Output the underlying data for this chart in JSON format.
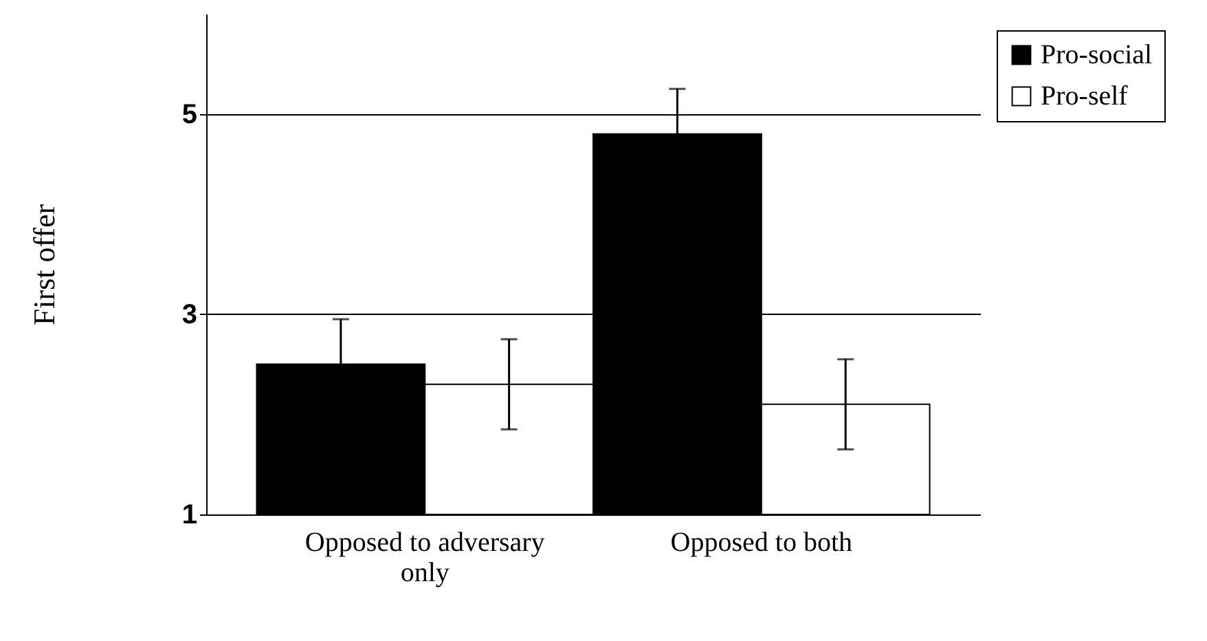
{
  "chart_data": {
    "type": "bar",
    "ylabel": "First offer",
    "categories": [
      "Opposed to adversary only",
      "Opposed to both"
    ],
    "series": [
      {
        "name": "Pro-social",
        "color": "#000000",
        "values": [
          2.5,
          4.8
        ],
        "errors": [
          0.45,
          0.45
        ]
      },
      {
        "name": "Pro-self",
        "color": "#ffffff",
        "values": [
          2.3,
          2.1
        ],
        "errors": [
          0.45,
          0.45
        ]
      }
    ],
    "ylim": [
      1,
      6
    ],
    "yticks": [
      1,
      3,
      5
    ],
    "grid": "y",
    "legend": "top right"
  }
}
